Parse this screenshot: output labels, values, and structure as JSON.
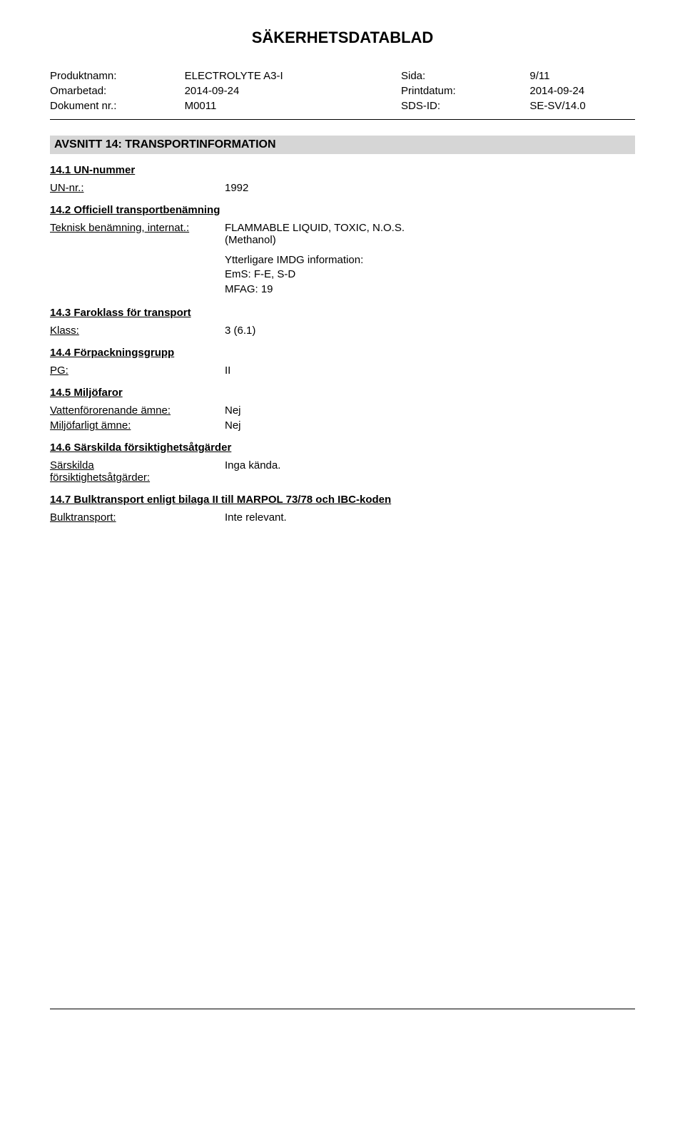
{
  "doc_title": "SÄKERHETSDATABLAD",
  "header": {
    "product_label": "Produktnamn:",
    "product_value": "ELECTROLYTE A3-I",
    "page_label": "Sida:",
    "page_value": "9/11",
    "revised_label": "Omarbetad:",
    "revised_value": "2014-09-24",
    "print_label": "Printdatum:",
    "print_value": "2014-09-24",
    "docnr_label": "Dokument nr.:",
    "docnr_value": "M0011",
    "sds_label": "SDS-ID:",
    "sds_value": "SE-SV/14.0"
  },
  "section_bar": "AVSNITT 14: TRANSPORTINFORMATION",
  "s141": {
    "heading": "14.1 UN-nummer",
    "label": "UN-nr.:",
    "value": "1992"
  },
  "s142": {
    "heading": "14.2 Officiell transportbenämning",
    "label": "Teknisk benämning, internat.:",
    "value_line1": "FLAMMABLE LIQUID, TOXIC, N.O.S.",
    "value_line2": "(Methanol)"
  },
  "imdg": {
    "line1": "Ytterligare IMDG information:",
    "line2": "EmS: F-E, S-D",
    "line3": "MFAG: 19"
  },
  "s143": {
    "heading": "14.3 Faroklass för transport",
    "label": "Klass:",
    "value": "3 (6.1)"
  },
  "s144": {
    "heading": "14.4 Förpackningsgrupp",
    "label": "PG:",
    "value": "II"
  },
  "s145": {
    "heading": "14.5 Miljöfaror",
    "row1_label": "Vattenförorenande ämne:",
    "row1_value": "Nej",
    "row2_label": "Miljöfarligt ämne:",
    "row2_value": "Nej"
  },
  "s146": {
    "heading": "14.6 Särskilda försiktighetsåtgärder",
    "label_line1": "Särskilda",
    "label_line2": "försiktighetsåtgärder:",
    "value": "Inga kända."
  },
  "s147": {
    "heading": "14.7 Bulktransport enligt bilaga II till MARPOL 73/78 och IBC-koden",
    "label": "Bulktransport:",
    "value": "Inte relevant."
  }
}
